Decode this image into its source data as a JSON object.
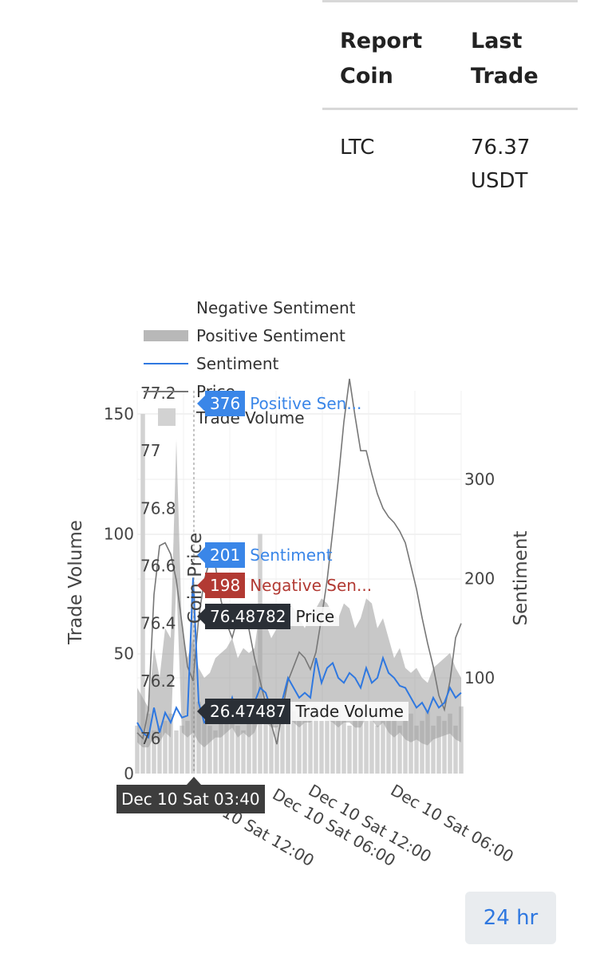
{
  "table": {
    "headers": [
      "Report Coin",
      "Last Trade"
    ],
    "row": {
      "coin": "LTC",
      "last_trade": "76.37 USDT"
    }
  },
  "chart_data": {
    "type": "line",
    "legend": [
      "Negative Sentiment",
      "Positive Sentiment",
      "Sentiment",
      "Price",
      "Trade Volume"
    ],
    "legend_placement": "top-left",
    "y_left_title": "Trade Volume",
    "y_left_ticks": [
      "0",
      "50",
      "100",
      "150"
    ],
    "y_price_title": "Coin Price",
    "y_price_ticks": [
      "76",
      "76.2",
      "76.4",
      "76.6",
      "76.8",
      "77",
      "77.2"
    ],
    "y_right_title": "Sentiment",
    "y_right_ticks": [
      "100",
      "200",
      "300"
    ],
    "x_ticks": [
      "Dec 10 Sat 12:00",
      "Dec 10 Sat 06:00",
      "Dec 10 Sat 12:00",
      "Dec 10 Sat 06:00"
    ],
    "grid": true,
    "price": [
      76.02,
      76.0,
      76.1,
      76.5,
      76.67,
      76.68,
      76.64,
      76.55,
      76.4,
      76.25,
      76.2,
      76.42,
      76.55,
      76.62,
      76.6,
      76.48,
      76.4,
      76.35,
      76.42,
      76.45,
      76.38,
      76.28,
      76.2,
      76.12,
      76.05,
      75.98,
      76.1,
      76.2,
      76.25,
      76.3,
      76.28,
      76.24,
      76.3,
      76.42,
      76.55,
      76.72,
      76.9,
      77.1,
      77.25,
      77.12,
      77.0,
      77.0,
      76.92,
      76.85,
      76.8,
      76.77,
      76.75,
      76.72,
      76.68,
      76.6,
      76.52,
      76.42,
      76.33,
      76.25,
      76.15,
      76.1,
      76.2,
      76.35,
      76.4
    ],
    "trade_volume": [
      20,
      150,
      25,
      18,
      20,
      22,
      25,
      18,
      20,
      22,
      75,
      30,
      25,
      20,
      18,
      28,
      25,
      22,
      20,
      18,
      25,
      45,
      100,
      30,
      25,
      20,
      28,
      22,
      26,
      24,
      30,
      25,
      28,
      22,
      26,
      24,
      25,
      22,
      20,
      24,
      28,
      22,
      25,
      20,
      22,
      24,
      26,
      20,
      22,
      25,
      20,
      22,
      26,
      20,
      24,
      22,
      25,
      20,
      28
    ],
    "sentiment": [
      55,
      45,
      40,
      70,
      45,
      65,
      55,
      70,
      60,
      62,
      201,
      75,
      55,
      60,
      65,
      70,
      62,
      80,
      60,
      72,
      70,
      75,
      90,
      85,
      68,
      72,
      78,
      100,
      90,
      80,
      85,
      80,
      120,
      95,
      110,
      115,
      100,
      95,
      105,
      100,
      90,
      110,
      95,
      100,
      120,
      105,
      100,
      92,
      90,
      80,
      70,
      75,
      65,
      80,
      70,
      75,
      90,
      80,
      85
    ],
    "positive_sentiment": [
      90,
      80,
      70,
      130,
      100,
      150,
      140,
      376,
      150,
      120,
      140,
      110,
      100,
      105,
      120,
      125,
      130,
      140,
      120,
      130,
      125,
      130,
      170,
      155,
      140,
      150,
      160,
      175,
      170,
      160,
      150,
      165,
      170,
      180,
      175,
      165,
      160,
      175,
      170,
      150,
      160,
      180,
      175,
      150,
      160,
      140,
      120,
      130,
      110,
      105,
      110,
      100,
      95,
      110,
      115,
      120,
      125,
      110,
      100
    ],
    "negative_sentiment": [
      35,
      30,
      25,
      40,
      35,
      45,
      40,
      198,
      45,
      40,
      45,
      35,
      30,
      35,
      40,
      40,
      45,
      50,
      40,
      45,
      40,
      45,
      60,
      55,
      50,
      50,
      55,
      60,
      55,
      50,
      55,
      55,
      60,
      60,
      58,
      55,
      50,
      55,
      55,
      50,
      50,
      60,
      58,
      50,
      55,
      45,
      40,
      45,
      38,
      35,
      38,
      34,
      32,
      38,
      40,
      42,
      44,
      38,
      35
    ]
  },
  "tooltips": {
    "positive": {
      "value": "376",
      "label": "Positive Sen..."
    },
    "sentiment": {
      "value": "201",
      "label": "Sentiment"
    },
    "negative": {
      "value": "198",
      "label": "Negative Sen..."
    },
    "price": {
      "value": "76.48782",
      "label": "Price"
    },
    "volume": {
      "value": "26.47487",
      "label": "Trade Volume"
    },
    "x": "Dec 10 Sat 03:40"
  },
  "button": {
    "label": "24 hr"
  }
}
